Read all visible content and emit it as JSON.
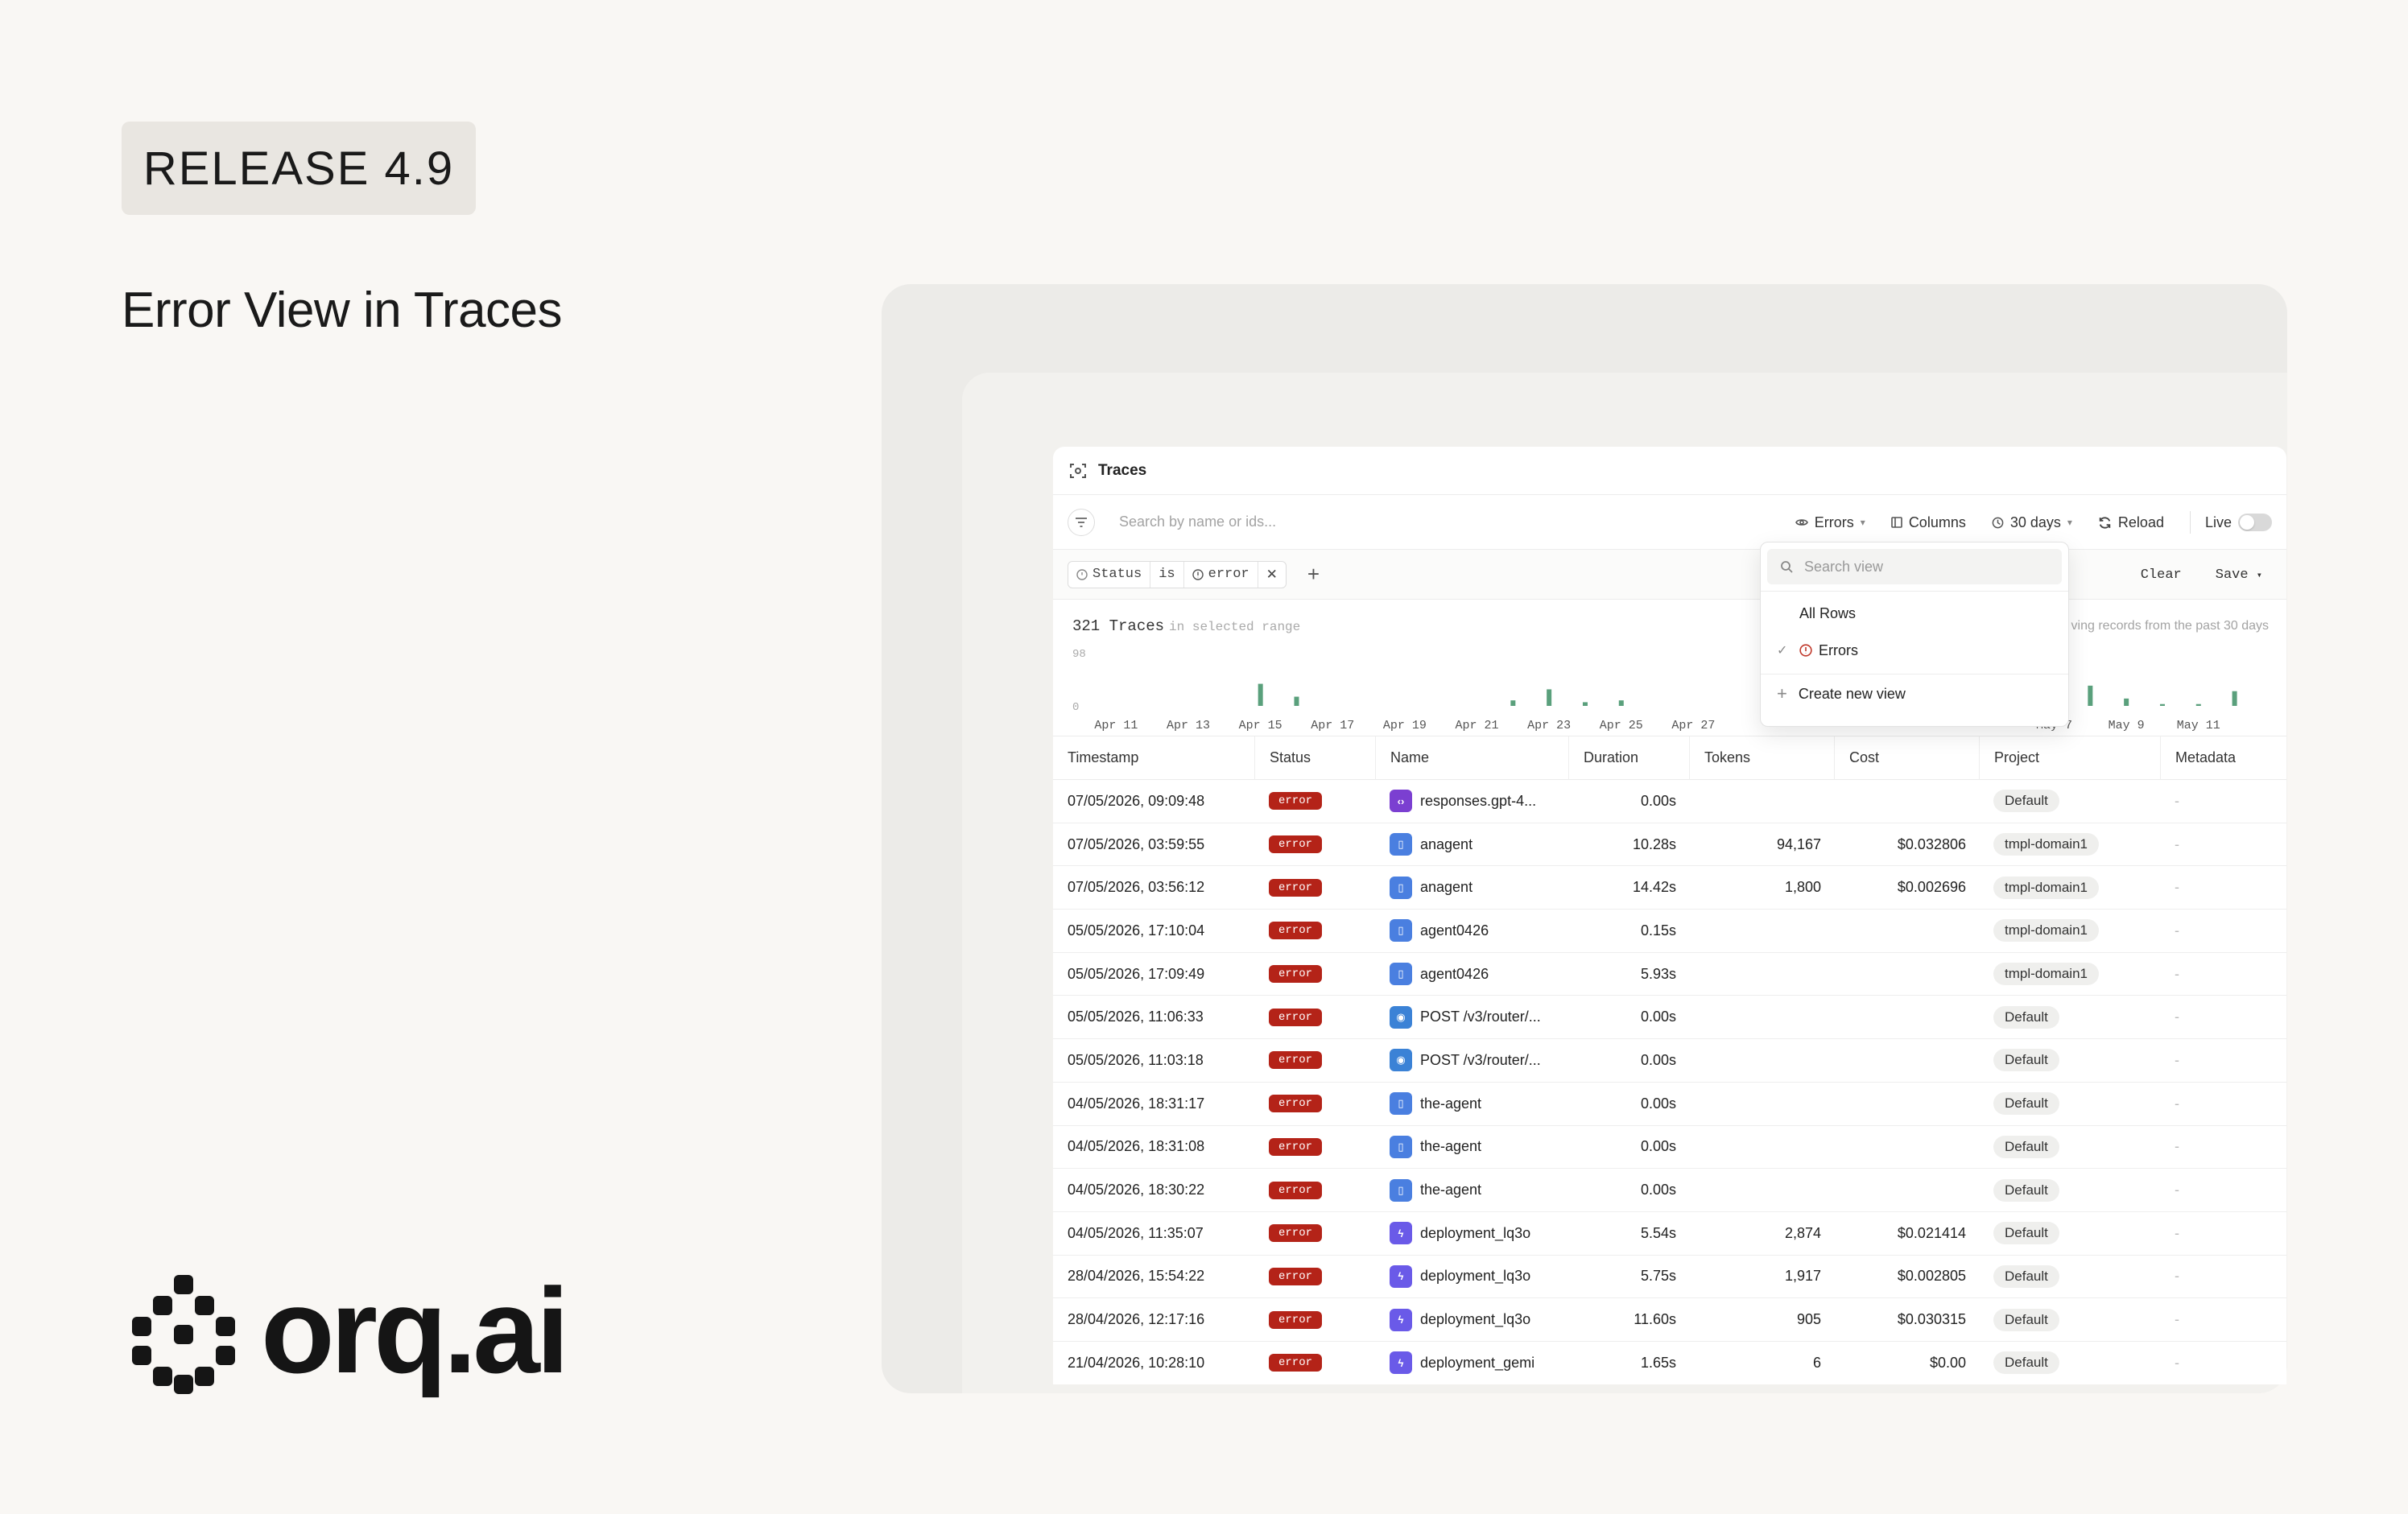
{
  "release": "RELEASE 4.9",
  "headline": "Error View in Traces",
  "logo_text": "orq.ai",
  "app": {
    "title": "Traces",
    "search_placeholder": "Search by name or ids...",
    "toolbar": {
      "view": "Errors",
      "columns": "Columns",
      "range": "30 days",
      "reload": "Reload",
      "live": "Live"
    },
    "filter": {
      "field": "Status",
      "op": "is",
      "value": "error",
      "clear": "Clear",
      "save": "Save"
    },
    "summary": {
      "count": "321 Traces",
      "suffix": "in selected range",
      "note": "ving records from the past 30 days",
      "y_max": "98",
      "y_min": "0"
    },
    "histogram": {
      "type": "bar",
      "x_labels": [
        "Apr 11",
        "Apr 13",
        "Apr 15",
        "Apr 17",
        "Apr 19",
        "Apr 21",
        "Apr 23",
        "Apr 25",
        "Apr 27",
        "May 7",
        "May 9",
        "May 11"
      ],
      "values": [
        {
          "day": "Apr 15",
          "v": 12
        },
        {
          "day": "Apr 16",
          "v": 5
        },
        {
          "day": "Apr 22",
          "v": 3
        },
        {
          "day": "Apr 23",
          "v": 9
        },
        {
          "day": "Apr 24",
          "v": 2
        },
        {
          "day": "Apr 25",
          "v": 3
        },
        {
          "day": "Apr 29",
          "v": 12
        },
        {
          "day": "May 8",
          "v": 11
        },
        {
          "day": "May 9",
          "v": 4
        },
        {
          "day": "May 10",
          "v": 1
        },
        {
          "day": "May 11",
          "v": 1
        },
        {
          "day": "May 12",
          "v": 8
        }
      ],
      "bar_color": "#5aa07c",
      "ylim": [
        0,
        98
      ]
    },
    "columns": [
      "Timestamp",
      "Status",
      "Name",
      "Duration",
      "Tokens",
      "Cost",
      "Project",
      "Metadata"
    ],
    "rows": [
      {
        "ts": "07/05/2026, 09:09:48",
        "status": "error",
        "icon": "code",
        "name": "responses.gpt-4...",
        "dur": "0.00s",
        "tok": "",
        "cost": "",
        "proj": "Default",
        "meta": "-"
      },
      {
        "ts": "07/05/2026, 03:59:55",
        "status": "error",
        "icon": "agent",
        "name": "anagent",
        "dur": "10.28s",
        "tok": "94,167",
        "cost": "$0.032806",
        "proj": "tmpl-domain1",
        "meta": "-"
      },
      {
        "ts": "07/05/2026, 03:56:12",
        "status": "error",
        "icon": "agent",
        "name": "anagent",
        "dur": "14.42s",
        "tok": "1,800",
        "cost": "$0.002696",
        "proj": "tmpl-domain1",
        "meta": "-"
      },
      {
        "ts": "05/05/2026, 17:10:04",
        "status": "error",
        "icon": "agent",
        "name": "agent0426",
        "dur": "0.15s",
        "tok": "",
        "cost": "",
        "proj": "tmpl-domain1",
        "meta": "-"
      },
      {
        "ts": "05/05/2026, 17:09:49",
        "status": "error",
        "icon": "agent",
        "name": "agent0426",
        "dur": "5.93s",
        "tok": "",
        "cost": "",
        "proj": "tmpl-domain1",
        "meta": "-"
      },
      {
        "ts": "05/05/2026, 11:06:33",
        "status": "error",
        "icon": "eye",
        "name": "POST /v3/router/...",
        "dur": "0.00s",
        "tok": "",
        "cost": "",
        "proj": "Default",
        "meta": "-"
      },
      {
        "ts": "05/05/2026, 11:03:18",
        "status": "error",
        "icon": "eye",
        "name": "POST /v3/router/...",
        "dur": "0.00s",
        "tok": "",
        "cost": "",
        "proj": "Default",
        "meta": "-"
      },
      {
        "ts": "04/05/2026, 18:31:17",
        "status": "error",
        "icon": "agent",
        "name": "the-agent",
        "dur": "0.00s",
        "tok": "",
        "cost": "",
        "proj": "Default",
        "meta": "-"
      },
      {
        "ts": "04/05/2026, 18:31:08",
        "status": "error",
        "icon": "agent",
        "name": "the-agent",
        "dur": "0.00s",
        "tok": "",
        "cost": "",
        "proj": "Default",
        "meta": "-"
      },
      {
        "ts": "04/05/2026, 18:30:22",
        "status": "error",
        "icon": "agent",
        "name": "the-agent",
        "dur": "0.00s",
        "tok": "",
        "cost": "",
        "proj": "Default",
        "meta": "-"
      },
      {
        "ts": "04/05/2026, 11:35:07",
        "status": "error",
        "icon": "deploy",
        "name": "deployment_lq3o",
        "dur": "5.54s",
        "tok": "2,874",
        "cost": "$0.021414",
        "proj": "Default",
        "meta": "-"
      },
      {
        "ts": "28/04/2026, 15:54:22",
        "status": "error",
        "icon": "deploy",
        "name": "deployment_lq3o",
        "dur": "5.75s",
        "tok": "1,917",
        "cost": "$0.002805",
        "proj": "Default",
        "meta": "-"
      },
      {
        "ts": "28/04/2026, 12:17:16",
        "status": "error",
        "icon": "deploy",
        "name": "deployment_lq3o",
        "dur": "11.60s",
        "tok": "905",
        "cost": "$0.030315",
        "proj": "Default",
        "meta": "-"
      },
      {
        "ts": "21/04/2026, 10:28:10",
        "status": "error",
        "icon": "deploy",
        "name": "deployment_gemi",
        "dur": "1.65s",
        "tok": "6",
        "cost": "$0.00",
        "proj": "Default",
        "meta": "-"
      }
    ],
    "icon_colors": {
      "code": "#7b3fd1",
      "agent": "#4a7fe0",
      "eye": "#3b82d6",
      "deploy": "#6a5ae8"
    },
    "dropdown": {
      "search_placeholder": "Search view",
      "items": [
        {
          "label": "All Rows",
          "selected": false
        },
        {
          "label": "Errors",
          "selected": true
        }
      ],
      "create": "Create new view"
    }
  }
}
